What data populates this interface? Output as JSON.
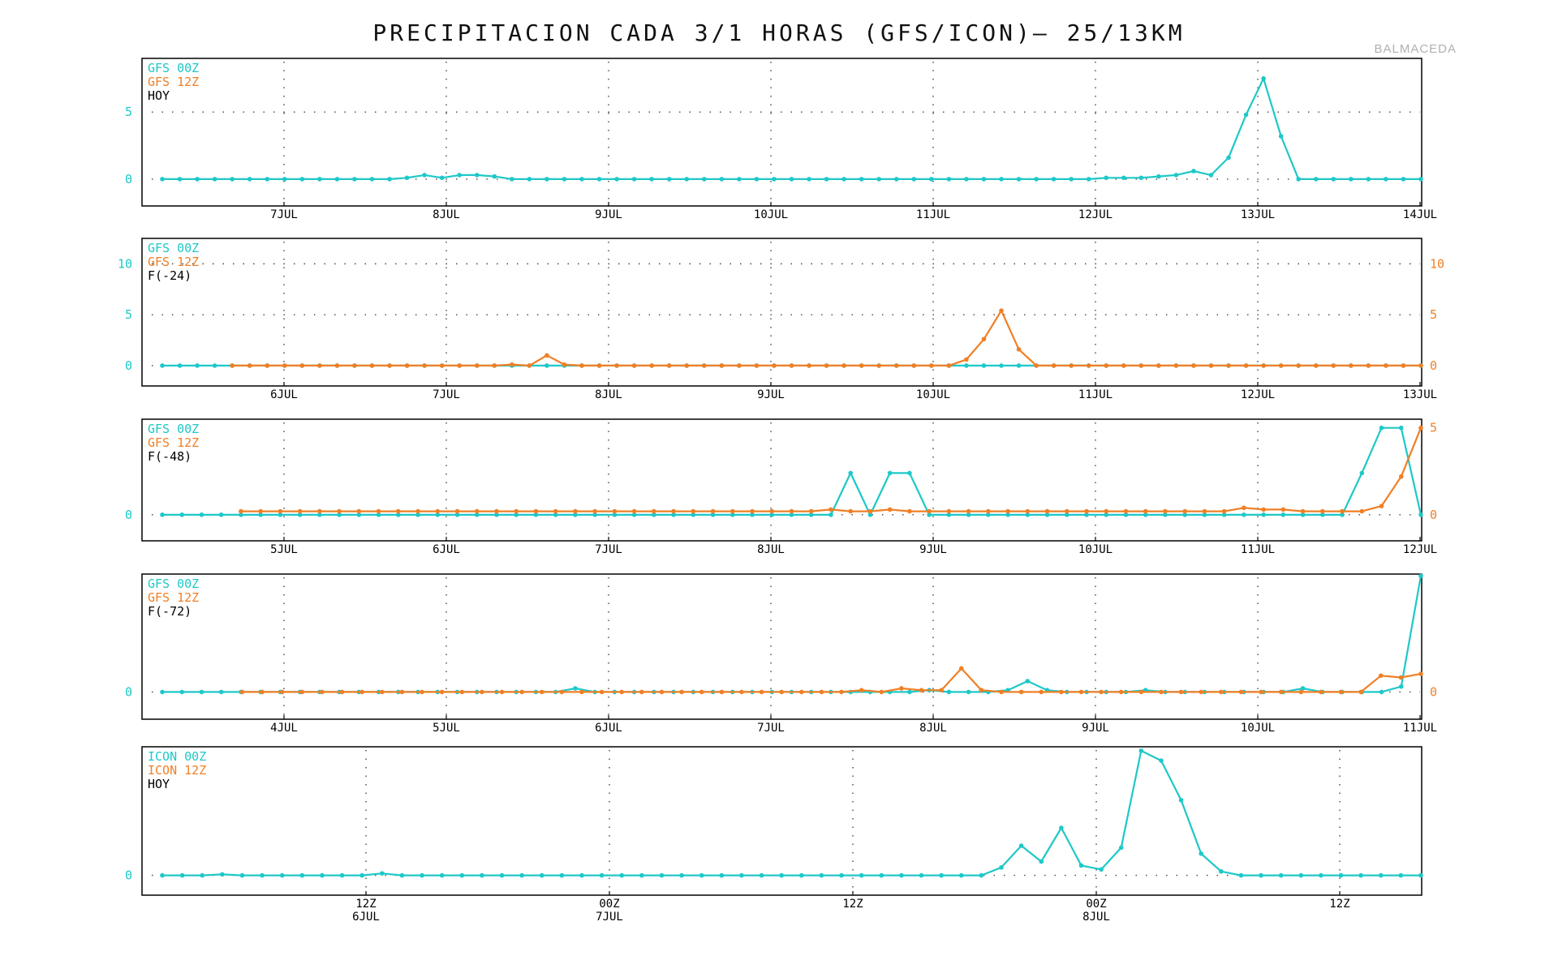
{
  "title": "PRECIPITACION CADA 3/1 HORAS (GFS/ICON)— 25/13KM",
  "station": "BALMACEDA",
  "colors": {
    "gfs_00z": "#1ec8c8",
    "gfs_12z": "#f07f25",
    "frame": "#000000",
    "grid": "#444444"
  },
  "chart_data": [
    {
      "type": "line",
      "legend": [
        {
          "text": "GFS 00Z",
          "color": "#1ec8c8"
        },
        {
          "text": "GFS 12Z",
          "color": "#f07f25"
        },
        {
          "text": "HOY",
          "color": "#000000"
        }
      ],
      "x_ticks": [
        "7JUL",
        "8JUL",
        "9JUL",
        "10JUL",
        "11JUL",
        "12JUL",
        "13JUL",
        "14JUL"
      ],
      "ylim": [
        -2,
        9
      ],
      "y_ticks_left": [
        "0",
        "5"
      ],
      "y_ticks_right": [],
      "series": [
        {
          "values": [
            0,
            0,
            0,
            0,
            0,
            0,
            0,
            0,
            0,
            0,
            0,
            0,
            0,
            0,
            0.1,
            0.3,
            0.1,
            0.3,
            0.3,
            0.2,
            0,
            0,
            0,
            0,
            0,
            0,
            0,
            0,
            0,
            0,
            0,
            0,
            0,
            0,
            0,
            0,
            0,
            0,
            0,
            0,
            0,
            0,
            0,
            0,
            0,
            0,
            0,
            0,
            0,
            0,
            0,
            0,
            0,
            0,
            0.1,
            0.1,
            0.1,
            0.2,
            0.3,
            0.6,
            0.3,
            1.6,
            4.8,
            7.5,
            3.2,
            0,
            0,
            0,
            0,
            0,
            0,
            0,
            0
          ]
        }
      ]
    },
    {
      "type": "line",
      "legend": [
        {
          "text": "GFS 00Z",
          "color": "#1ec8c8"
        },
        {
          "text": "GFS 12Z",
          "color": "#f07f25"
        },
        {
          "text": "F(-24)",
          "color": "#000000"
        }
      ],
      "x_ticks": [
        "6JUL",
        "7JUL",
        "8JUL",
        "9JUL",
        "10JUL",
        "11JUL",
        "12JUL",
        "13JUL"
      ],
      "ylim": [
        -2,
        12.5
      ],
      "y_ticks_left": [
        "0",
        "5",
        "10"
      ],
      "y_ticks_right": [
        "0",
        "5",
        "10"
      ],
      "series": [
        {
          "values": [
            0,
            0,
            0,
            0,
            0,
            0,
            0,
            0,
            0,
            0,
            0,
            0,
            0,
            0,
            0,
            0,
            0,
            0,
            0,
            0,
            0,
            0,
            0,
            0,
            0,
            0,
            0,
            0,
            0,
            0,
            0,
            0,
            0,
            0,
            0,
            0,
            0,
            0,
            0,
            0,
            0,
            0,
            0,
            0,
            0,
            0,
            0,
            0,
            0,
            0,
            0,
            0,
            0,
            0,
            0,
            0,
            0,
            0,
            0,
            0,
            0,
            0,
            0,
            0,
            0,
            0,
            0,
            0,
            0,
            0,
            0,
            0,
            0
          ]
        },
        {
          "values": [
            null,
            null,
            null,
            null,
            0,
            0,
            0,
            0,
            0,
            0,
            0,
            0,
            0,
            0,
            0,
            0,
            0,
            0,
            0,
            0,
            0.1,
            0,
            1.0,
            0.1,
            0,
            0,
            0,
            0,
            0,
            0,
            0,
            0,
            0,
            0,
            0,
            0,
            0,
            0,
            0,
            0,
            0,
            0,
            0,
            0,
            0,
            0,
            0.6,
            2.6,
            5.4,
            1.6,
            0,
            0,
            0,
            0,
            0,
            0,
            0,
            0,
            0,
            0,
            0,
            0,
            0,
            0,
            0,
            0,
            0,
            0,
            0,
            0,
            0,
            0,
            0
          ]
        }
      ]
    },
    {
      "type": "line",
      "legend": [
        {
          "text": "GFS 00Z",
          "color": "#1ec8c8"
        },
        {
          "text": "GFS 12Z",
          "color": "#f07f25"
        },
        {
          "text": "F(-48)",
          "color": "#000000"
        }
      ],
      "x_ticks": [
        "5JUL",
        "6JUL",
        "7JUL",
        "8JUL",
        "9JUL",
        "10JUL",
        "11JUL",
        "12JUL"
      ],
      "ylim": [
        -1.5,
        5.5
      ],
      "y_ticks_left": [
        "0"
      ],
      "y_ticks_right": [
        "0",
        "5"
      ],
      "series": [
        {
          "values": [
            0,
            0,
            0,
            0,
            0,
            0,
            0,
            0,
            0,
            0,
            0,
            0,
            0,
            0,
            0,
            0,
            0,
            0,
            0,
            0,
            0,
            0,
            0,
            0,
            0,
            0,
            0,
            0,
            0,
            0,
            0,
            0,
            0,
            0,
            0,
            2.4,
            0,
            2.4,
            2.4,
            0,
            0,
            0,
            0,
            0,
            0,
            0,
            0,
            0,
            0,
            0,
            0,
            0,
            0,
            0,
            0,
            0,
            0,
            0,
            0,
            0,
            0,
            2.4,
            5.0,
            5.0,
            0
          ]
        },
        {
          "values": [
            null,
            null,
            null,
            null,
            0.2,
            0.2,
            0.2,
            0.2,
            0.2,
            0.2,
            0.2,
            0.2,
            0.2,
            0.2,
            0.2,
            0.2,
            0.2,
            0.2,
            0.2,
            0.2,
            0.2,
            0.2,
            0.2,
            0.2,
            0.2,
            0.2,
            0.2,
            0.2,
            0.2,
            0.2,
            0.2,
            0.2,
            0.2,
            0.2,
            0.3,
            0.2,
            0.2,
            0.3,
            0.2,
            0.2,
            0.2,
            0.2,
            0.2,
            0.2,
            0.2,
            0.2,
            0.2,
            0.2,
            0.2,
            0.2,
            0.2,
            0.2,
            0.2,
            0.2,
            0.2,
            0.4,
            0.3,
            0.3,
            0.2,
            0.2,
            0.2,
            0.2,
            0.5,
            2.2,
            5.0
          ]
        }
      ]
    },
    {
      "type": "line",
      "legend": [
        {
          "text": "GFS 00Z",
          "color": "#1ec8c8"
        },
        {
          "text": "GFS 12Z",
          "color": "#f07f25"
        },
        {
          "text": "F(-72)",
          "color": "#000000"
        }
      ],
      "x_ticks": [
        "4JUL",
        "5JUL",
        "6JUL",
        "7JUL",
        "8JUL",
        "9JUL",
        "10JUL",
        "11JUL"
      ],
      "ylim": [
        -1.5,
        6.5
      ],
      "y_ticks_left": [
        "0"
      ],
      "y_ticks_right": [
        "0"
      ],
      "series": [
        {
          "values": [
            0,
            0,
            0,
            0,
            0,
            0,
            0,
            0,
            0,
            0,
            0,
            0,
            0,
            0,
            0,
            0,
            0,
            0,
            0,
            0,
            0,
            0.2,
            0,
            0,
            0,
            0,
            0,
            0,
            0,
            0,
            0,
            0,
            0,
            0,
            0,
            0,
            0,
            0,
            0,
            0.1,
            0,
            0,
            0,
            0.1,
            0.6,
            0.1,
            0,
            0,
            0,
            0,
            0.1,
            0,
            0,
            0,
            0,
            0,
            0,
            0,
            0.2,
            0,
            0,
            0,
            0,
            0.3,
            6.4
          ]
        },
        {
          "values": [
            null,
            null,
            null,
            null,
            0,
            0,
            0,
            0,
            0,
            0,
            0,
            0,
            0,
            0,
            0,
            0,
            0,
            0,
            0,
            0,
            0,
            0,
            0,
            0,
            0,
            0,
            0,
            0,
            0,
            0,
            0,
            0,
            0,
            0,
            0,
            0.1,
            0,
            0.2,
            0.1,
            0.1,
            1.3,
            0.1,
            0,
            0,
            0,
            0,
            0,
            0,
            0,
            0,
            0,
            0,
            0,
            0,
            0,
            0,
            0,
            0,
            0,
            0,
            0,
            0.9,
            0.8,
            1.0
          ]
        }
      ]
    },
    {
      "type": "line",
      "legend": [
        {
          "text": "ICON 00Z",
          "color": "#1ec8c8"
        },
        {
          "text": "ICON 12Z",
          "color": "#f07f25"
        },
        {
          "text": "HOY",
          "color": "#000000"
        }
      ],
      "x_ticks": [
        "12Z\n6JUL",
        "00Z\n7JUL",
        "12Z",
        "00Z\n8JUL",
        "12Z"
      ],
      "ylim": [
        -1,
        6.5
      ],
      "y_ticks_left": [
        "0"
      ],
      "y_ticks_right": [],
      "series": [
        {
          "values": [
            0,
            0,
            0,
            0.05,
            0,
            0,
            0,
            0,
            0,
            0,
            0,
            0.1,
            0,
            0,
            0,
            0,
            0,
            0,
            0,
            0,
            0,
            0,
            0,
            0,
            0,
            0,
            0,
            0,
            0,
            0,
            0,
            0,
            0,
            0,
            0,
            0,
            0,
            0,
            0,
            0,
            0,
            0,
            0.4,
            1.5,
            0.7,
            2.4,
            0.5,
            0.3,
            1.4,
            6.3,
            5.8,
            3.8,
            1.1,
            0.2,
            0,
            0,
            0,
            0,
            0,
            0,
            0,
            0,
            0,
            0
          ]
        }
      ]
    }
  ]
}
